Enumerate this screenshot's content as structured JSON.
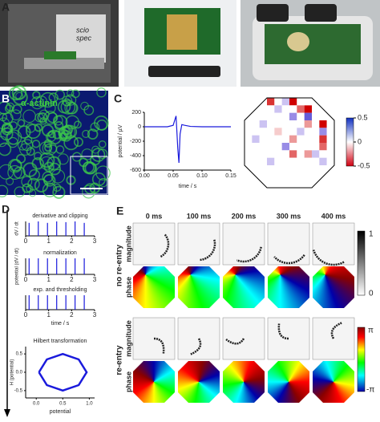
{
  "panels": [
    "A",
    "B",
    "C",
    "D",
    "E"
  ],
  "photo_text": [
    "scio",
    "spec"
  ],
  "stain_label": "α-actinin",
  "chart_data": [
    {
      "type": "line",
      "xlabel": "time / s",
      "ylabel": "potential / µV",
      "x": [
        0,
        0.04,
        0.05,
        0.055,
        0.058,
        0.06,
        0.062,
        0.065,
        0.07,
        0.08,
        0.1,
        0.15
      ],
      "values": [
        0,
        0,
        20,
        150,
        -300,
        -500,
        -100,
        30,
        20,
        5,
        0,
        0
      ],
      "color": "#1a1adc",
      "xlim": [
        0,
        0.15
      ],
      "xticks": [
        {
          "value": 0,
          "label": "0.00"
        },
        {
          "value": 0.05,
          "label": "0.05"
        },
        {
          "value": 0.1,
          "label": "0.10"
        },
        {
          "value": 0.15,
          "label": "0.15"
        }
      ],
      "ylim": [
        -600,
        200
      ],
      "yticks": [
        -600,
        -400,
        -200,
        0,
        200
      ]
    },
    {
      "type": "heatmap",
      "zlim": [
        -0.5,
        0.5
      ],
      "zticks": [
        0.5,
        0,
        -0.5
      ],
      "values": [
        [
          null,
          null,
          null,
          -0.4,
          0,
          0.1,
          -0.5,
          0,
          0,
          null,
          null,
          null
        ],
        [
          null,
          null,
          0,
          0,
          0.1,
          0,
          0,
          -0.3,
          -0.6,
          0,
          null,
          null
        ],
        [
          null,
          0,
          0,
          0,
          0,
          0,
          0.2,
          0,
          0.3,
          0,
          0,
          null
        ],
        [
          0,
          0,
          0.1,
          0,
          0,
          0,
          0,
          0,
          -0.2,
          0,
          -0.5,
          0
        ],
        [
          0,
          0,
          0,
          0,
          -0.1,
          0,
          0,
          0.1,
          0,
          0,
          0.2,
          0
        ],
        [
          0,
          0.1,
          0,
          0,
          0,
          0,
          -0.2,
          0,
          0,
          0,
          -0.4,
          0
        ],
        [
          0,
          0,
          0,
          0,
          0,
          0.2,
          0,
          0,
          0,
          0,
          -0.3,
          0
        ],
        [
          0,
          0,
          0,
          0,
          0,
          0,
          -0.3,
          0,
          -0.2,
          0.1,
          0,
          0
        ],
        [
          0,
          0,
          0,
          0.1,
          0,
          0,
          0,
          0,
          0,
          0,
          0.1,
          0
        ],
        [
          null,
          0,
          0,
          0,
          0,
          0,
          0,
          0,
          0,
          0,
          0,
          null
        ],
        [
          null,
          null,
          0,
          0,
          0,
          0,
          0,
          0,
          0,
          0,
          null,
          null
        ],
        [
          null,
          null,
          null,
          0,
          0,
          0,
          0,
          0,
          0,
          null,
          null,
          null
        ]
      ]
    },
    {
      "type": "stem",
      "title": "derivative and clipping",
      "ylabel": "dV / dt",
      "x": [
        0.15,
        0.55,
        0.95,
        1.35,
        1.75,
        2.15,
        2.55
      ],
      "values": [
        0.9,
        1,
        0.9,
        1,
        0.95,
        1,
        0.9
      ],
      "color": "#1a1adc",
      "xlim": [
        0,
        3
      ],
      "xticks": [
        0,
        1,
        2,
        3
      ],
      "ylim": [
        0,
        1
      ]
    },
    {
      "type": "stem",
      "title": "normalization",
      "ylabel": "potential (dV / dt)",
      "x": [
        0.15,
        0.55,
        0.95,
        1.35,
        1.75,
        2.15,
        2.55
      ],
      "values": [
        1,
        1,
        1,
        1,
        1,
        1,
        1
      ],
      "color": "#1a1adc",
      "xlim": [
        0,
        3
      ],
      "xticks": [
        0,
        1,
        2,
        3
      ],
      "ylim": [
        0,
        1
      ]
    },
    {
      "type": "stem",
      "title": "exp. and thresholding",
      "xlabel": "time / s",
      "x": [
        0.15,
        0.55,
        0.95,
        1.35,
        1.75,
        2.15,
        2.55
      ],
      "values": [
        1,
        1,
        1,
        1,
        1,
        1,
        1
      ],
      "color": "#1a1adc",
      "xlim": [
        0,
        3
      ],
      "xticks": [
        0,
        1,
        2,
        3
      ],
      "ylim": [
        0,
        1
      ]
    },
    {
      "type": "line",
      "title": "Hilbert transformation",
      "xlabel": "potential",
      "ylabel": "H (potential)",
      "x": [
        0.05,
        0.2,
        0.5,
        0.8,
        0.95,
        0.8,
        0.5,
        0.2,
        0.05
      ],
      "values": [
        0,
        0.35,
        0.5,
        0.35,
        0,
        -0.35,
        -0.5,
        -0.35,
        0
      ],
      "color": "#1a1adc",
      "xlim": [
        -0.2,
        1.1
      ],
      "xticks": [
        {
          "value": 0,
          "label": "0.0"
        },
        0.5,
        {
          "value": 1,
          "label": "1.0"
        }
      ],
      "ylim": [
        -0.7,
        0.7
      ],
      "yticks": [
        0.5,
        {
          "value": 0,
          "label": "0.0"
        },
        -0.5
      ]
    }
  ],
  "maps": {
    "times": [
      "0 ms",
      "100 ms",
      "200 ms",
      "300 ms",
      "400 ms"
    ],
    "groups": [
      "no re-entry",
      "re-entry"
    ],
    "rows": [
      "magnitude",
      "phase",
      "magnitude",
      "phase"
    ],
    "magnitude_scale": [
      "1",
      "0"
    ],
    "phase_scale": [
      "π",
      "-π"
    ]
  }
}
